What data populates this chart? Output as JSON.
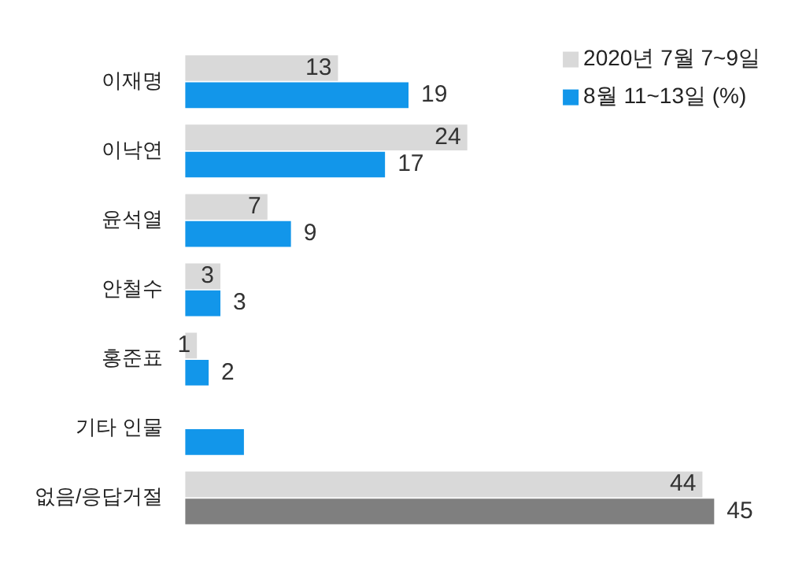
{
  "chart_data": {
    "type": "bar",
    "orientation": "horizontal",
    "categories": [
      "이재명",
      "이낙연",
      "윤석열",
      "안철수",
      "홍준표",
      "기타 인물",
      "없음/응답거절"
    ],
    "series": [
      {
        "name": "2020년 7월 7~9일",
        "color": "#d9d9d9",
        "values": [
          13,
          24,
          7,
          3,
          1,
          null,
          44
        ],
        "value_labels": [
          "13",
          "24",
          "7",
          "3",
          "1",
          null,
          "44"
        ]
      },
      {
        "name": "8월 11~13일 (%)",
        "color": "#1296ea",
        "colors": [
          "#1296ea",
          "#1296ea",
          "#1296ea",
          "#1296ea",
          "#1296ea",
          "#1296ea",
          "#7f7f7f"
        ],
        "values": [
          19,
          17,
          9,
          3,
          2,
          5,
          45
        ],
        "value_labels": [
          "19",
          "17",
          "9",
          "3",
          "2",
          null,
          "45"
        ]
      }
    ],
    "legend": "top right",
    "grid": false,
    "tick_labels": "y"
  }
}
